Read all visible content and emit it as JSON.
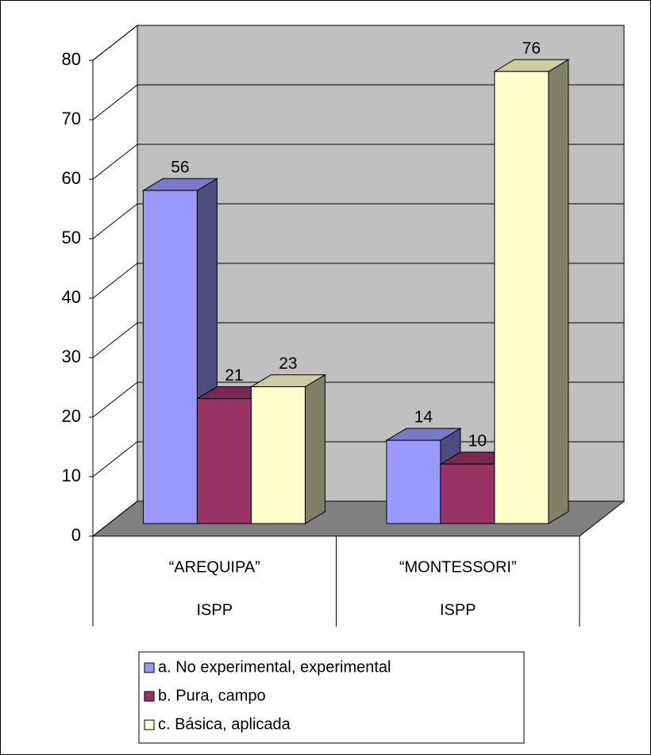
{
  "chart_data": {
    "type": "bar3d",
    "categories": [
      [
        "“AREQUIPA”",
        "ISPP"
      ],
      [
        "“MONTESSORI”",
        "ISPP"
      ]
    ],
    "series": [
      {
        "name": "a. No experimental, experimental",
        "color": "#9999ff",
        "values": [
          56,
          14
        ]
      },
      {
        "name": "b. Pura, campo",
        "color": "#993366",
        "values": [
          21,
          10
        ]
      },
      {
        "name": "c. Básica, aplicada",
        "color": "#ffffcc",
        "values": [
          23,
          76
        ]
      }
    ],
    "ylim": [
      0,
      80
    ],
    "yticks": [
      0,
      10,
      20,
      30,
      40,
      50,
      60,
      70,
      80
    ],
    "grid": true,
    "legend": "bottom"
  }
}
